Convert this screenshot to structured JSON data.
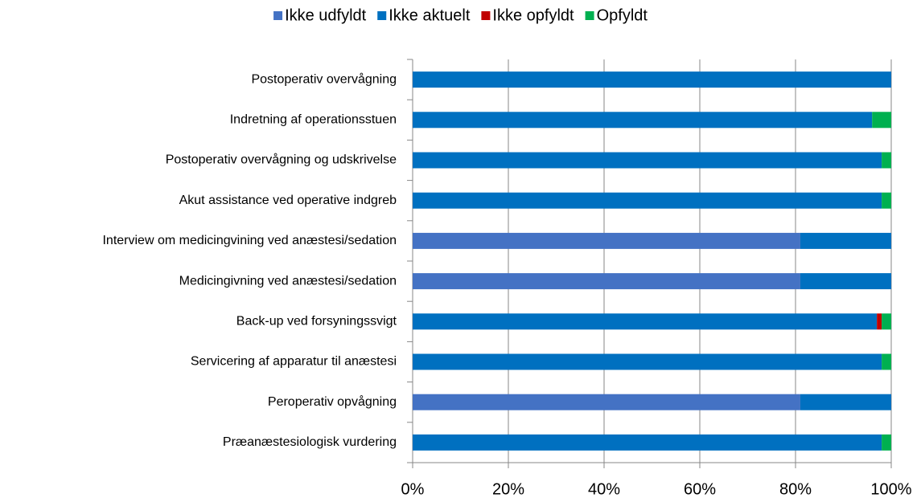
{
  "chart_data": {
    "type": "stacked_bar_horizontal",
    "categories": [
      "Postoperativ overvågning",
      "Indretning af operationsstuen",
      "Postoperativ overvågning og udskrivelse",
      "Akut assistance ved operative indgreb",
      "Interview om medicingvining ved anæstesi/sedation",
      "Medicingivning ved anæstesi/sedation",
      "Back-up ved forsyningssvigt",
      "Servicering af apparatur til anæstesi",
      "Peroperativ opvågning",
      "Præanæstesiologisk vurdering"
    ],
    "series": [
      {
        "name": "Ikke udfyldt",
        "color": "#4472c4",
        "values": [
          0,
          0,
          0,
          0,
          81,
          81,
          0,
          0,
          81,
          0
        ]
      },
      {
        "name": "Ikke aktuelt",
        "color": "#0070c0",
        "values": [
          100,
          96,
          98,
          98,
          19,
          19,
          97,
          98,
          19,
          98
        ]
      },
      {
        "name": "Ikke opfyldt",
        "color": "#c00000",
        "values": [
          0,
          0,
          0,
          0,
          0,
          0,
          1,
          0,
          0,
          0
        ]
      },
      {
        "name": "Opfyldt",
        "color": "#00b050",
        "values": [
          0,
          4,
          2,
          2,
          0,
          0,
          2,
          2,
          0,
          2
        ]
      }
    ],
    "xlim": [
      0,
      100
    ],
    "xticks": [
      {
        "value": 0,
        "label": "0%"
      },
      {
        "value": 20,
        "label": "20%"
      },
      {
        "value": 40,
        "label": "40%"
      },
      {
        "value": 60,
        "label": "60%"
      },
      {
        "value": 80,
        "label": "80%"
      },
      {
        "value": 100,
        "label": "100%"
      }
    ],
    "grid": true,
    "legend": "top"
  }
}
